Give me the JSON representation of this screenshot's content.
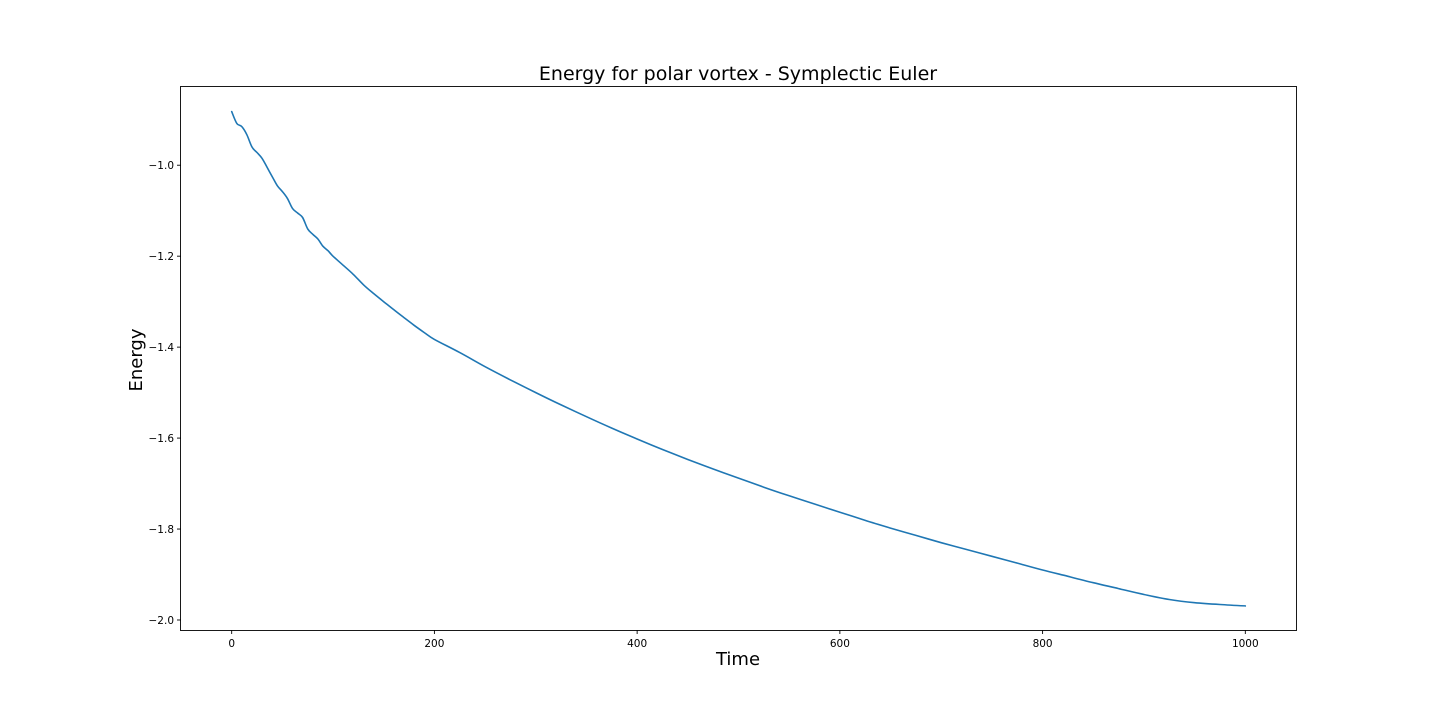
{
  "chart_data": {
    "type": "line",
    "title": "Energy for polar vortex - Symplectic Euler",
    "xlabel": "Time",
    "ylabel": "Energy",
    "xlim": [
      -50,
      1050
    ],
    "ylim": [
      -2.022,
      -0.828
    ],
    "xticks": [
      0,
      200,
      400,
      600,
      800,
      1000
    ],
    "xtick_labels": [
      "0",
      "200",
      "400",
      "600",
      "800",
      "1000"
    ],
    "yticks": [
      -2.0,
      -1.8,
      -1.6,
      -1.4,
      -1.2,
      -1.0
    ],
    "ytick_labels": [
      "−2.0",
      "−1.8",
      "−1.6",
      "−1.4",
      "−1.2",
      "−1.0"
    ],
    "grid": false,
    "legend": "none",
    "colors": {
      "series": "#1f77b4",
      "axes": "#000000",
      "background": "#ffffff"
    },
    "series": [
      {
        "x": [
          0,
          5,
          10,
          15,
          20,
          25,
          30,
          35,
          40,
          45,
          50,
          55,
          60,
          65,
          70,
          75,
          80,
          85,
          90,
          95,
          100,
          110,
          120,
          130,
          140,
          150,
          160,
          170,
          180,
          190,
          200,
          225,
          250,
          275,
          300,
          325,
          350,
          375,
          400,
          425,
          450,
          475,
          500,
          525,
          550,
          575,
          600,
          625,
          650,
          675,
          700,
          725,
          750,
          775,
          800,
          825,
          850,
          875,
          900,
          925,
          950,
          975,
          1000
        ],
        "values": [
          -0.882,
          -0.908,
          -0.915,
          -0.933,
          -0.96,
          -0.972,
          -0.985,
          -1.005,
          -1.025,
          -1.045,
          -1.058,
          -1.073,
          -1.095,
          -1.105,
          -1.115,
          -1.14,
          -1.152,
          -1.162,
          -1.178,
          -1.188,
          -1.2,
          -1.22,
          -1.24,
          -1.263,
          -1.282,
          -1.3,
          -1.318,
          -1.335,
          -1.352,
          -1.368,
          -1.383,
          -1.412,
          -1.443,
          -1.472,
          -1.5,
          -1.527,
          -1.553,
          -1.578,
          -1.602,
          -1.625,
          -1.647,
          -1.668,
          -1.688,
          -1.708,
          -1.727,
          -1.745,
          -1.763,
          -1.781,
          -1.798,
          -1.814,
          -1.83,
          -1.845,
          -1.86,
          -1.875,
          -1.89,
          -1.904,
          -1.918,
          -1.931,
          -1.944,
          -1.955,
          -1.962,
          -1.966,
          -1.969
        ]
      }
    ]
  }
}
